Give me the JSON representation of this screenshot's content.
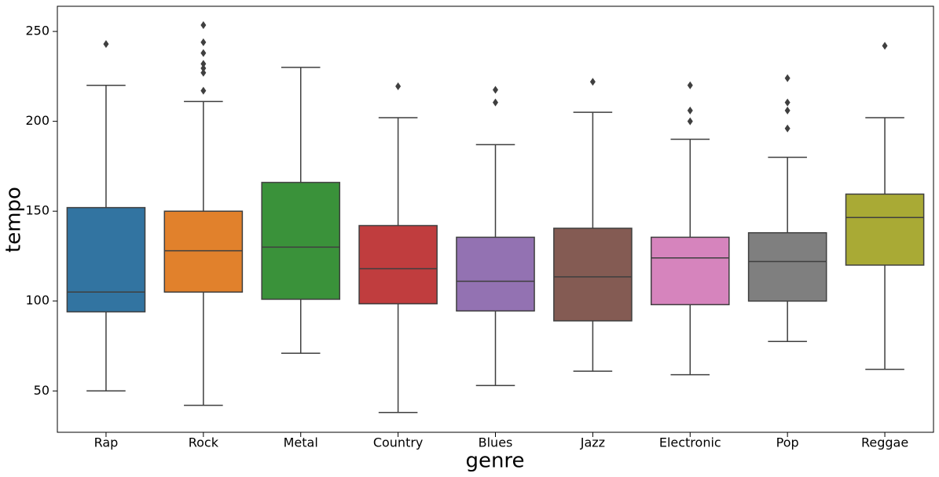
{
  "chart_data": {
    "type": "box",
    "xlabel": "genre",
    "ylabel": "tempo",
    "categories": [
      "Rap",
      "Rock",
      "Metal",
      "Country",
      "Blues",
      "Jazz",
      "Electronic",
      "Pop",
      "Reggae"
    ],
    "boxes": [
      {
        "whisker_low": 50,
        "q1": 94,
        "median": 105,
        "q3": 152,
        "whisker_high": 220,
        "outliers": [
          243
        ],
        "color": "#3274a1"
      },
      {
        "whisker_low": 42,
        "q1": 105,
        "median": 128,
        "q3": 150,
        "whisker_high": 211,
        "outliers": [
          253.5,
          244,
          238,
          232,
          229.5,
          227,
          217
        ],
        "color": "#e1812c"
      },
      {
        "whisker_low": 71,
        "q1": 101,
        "median": 130,
        "q3": 166,
        "whisker_high": 230,
        "outliers": [],
        "color": "#3a923a"
      },
      {
        "whisker_low": 38,
        "q1": 98.5,
        "median": 118,
        "q3": 142,
        "whisker_high": 202,
        "outliers": [
          219.5
        ],
        "color": "#c03d3e"
      },
      {
        "whisker_low": 53,
        "q1": 94.5,
        "median": 111,
        "q3": 135.5,
        "whisker_high": 187,
        "outliers": [
          217.5,
          210.5
        ],
        "color": "#9372b2"
      },
      {
        "whisker_low": 61,
        "q1": 89,
        "median": 113.5,
        "q3": 140.5,
        "whisker_high": 205,
        "outliers": [
          222
        ],
        "color": "#845b53"
      },
      {
        "whisker_low": 59,
        "q1": 98,
        "median": 124,
        "q3": 135.5,
        "whisker_high": 190,
        "outliers": [
          220,
          206,
          200
        ],
        "color": "#d684bd"
      },
      {
        "whisker_low": 77.5,
        "q1": 100,
        "median": 122,
        "q3": 138,
        "whisker_high": 180,
        "outliers": [
          224,
          210.5,
          206,
          196
        ],
        "color": "#7f7f7f"
      },
      {
        "whisker_low": 62,
        "q1": 120,
        "median": 146.5,
        "q3": 159.5,
        "whisker_high": 202,
        "outliers": [
          242
        ],
        "color": "#a9aa35"
      }
    ],
    "ylim": [
      27,
      264
    ],
    "yticks": [
      50,
      100,
      150,
      200,
      250
    ],
    "grid": false
  }
}
